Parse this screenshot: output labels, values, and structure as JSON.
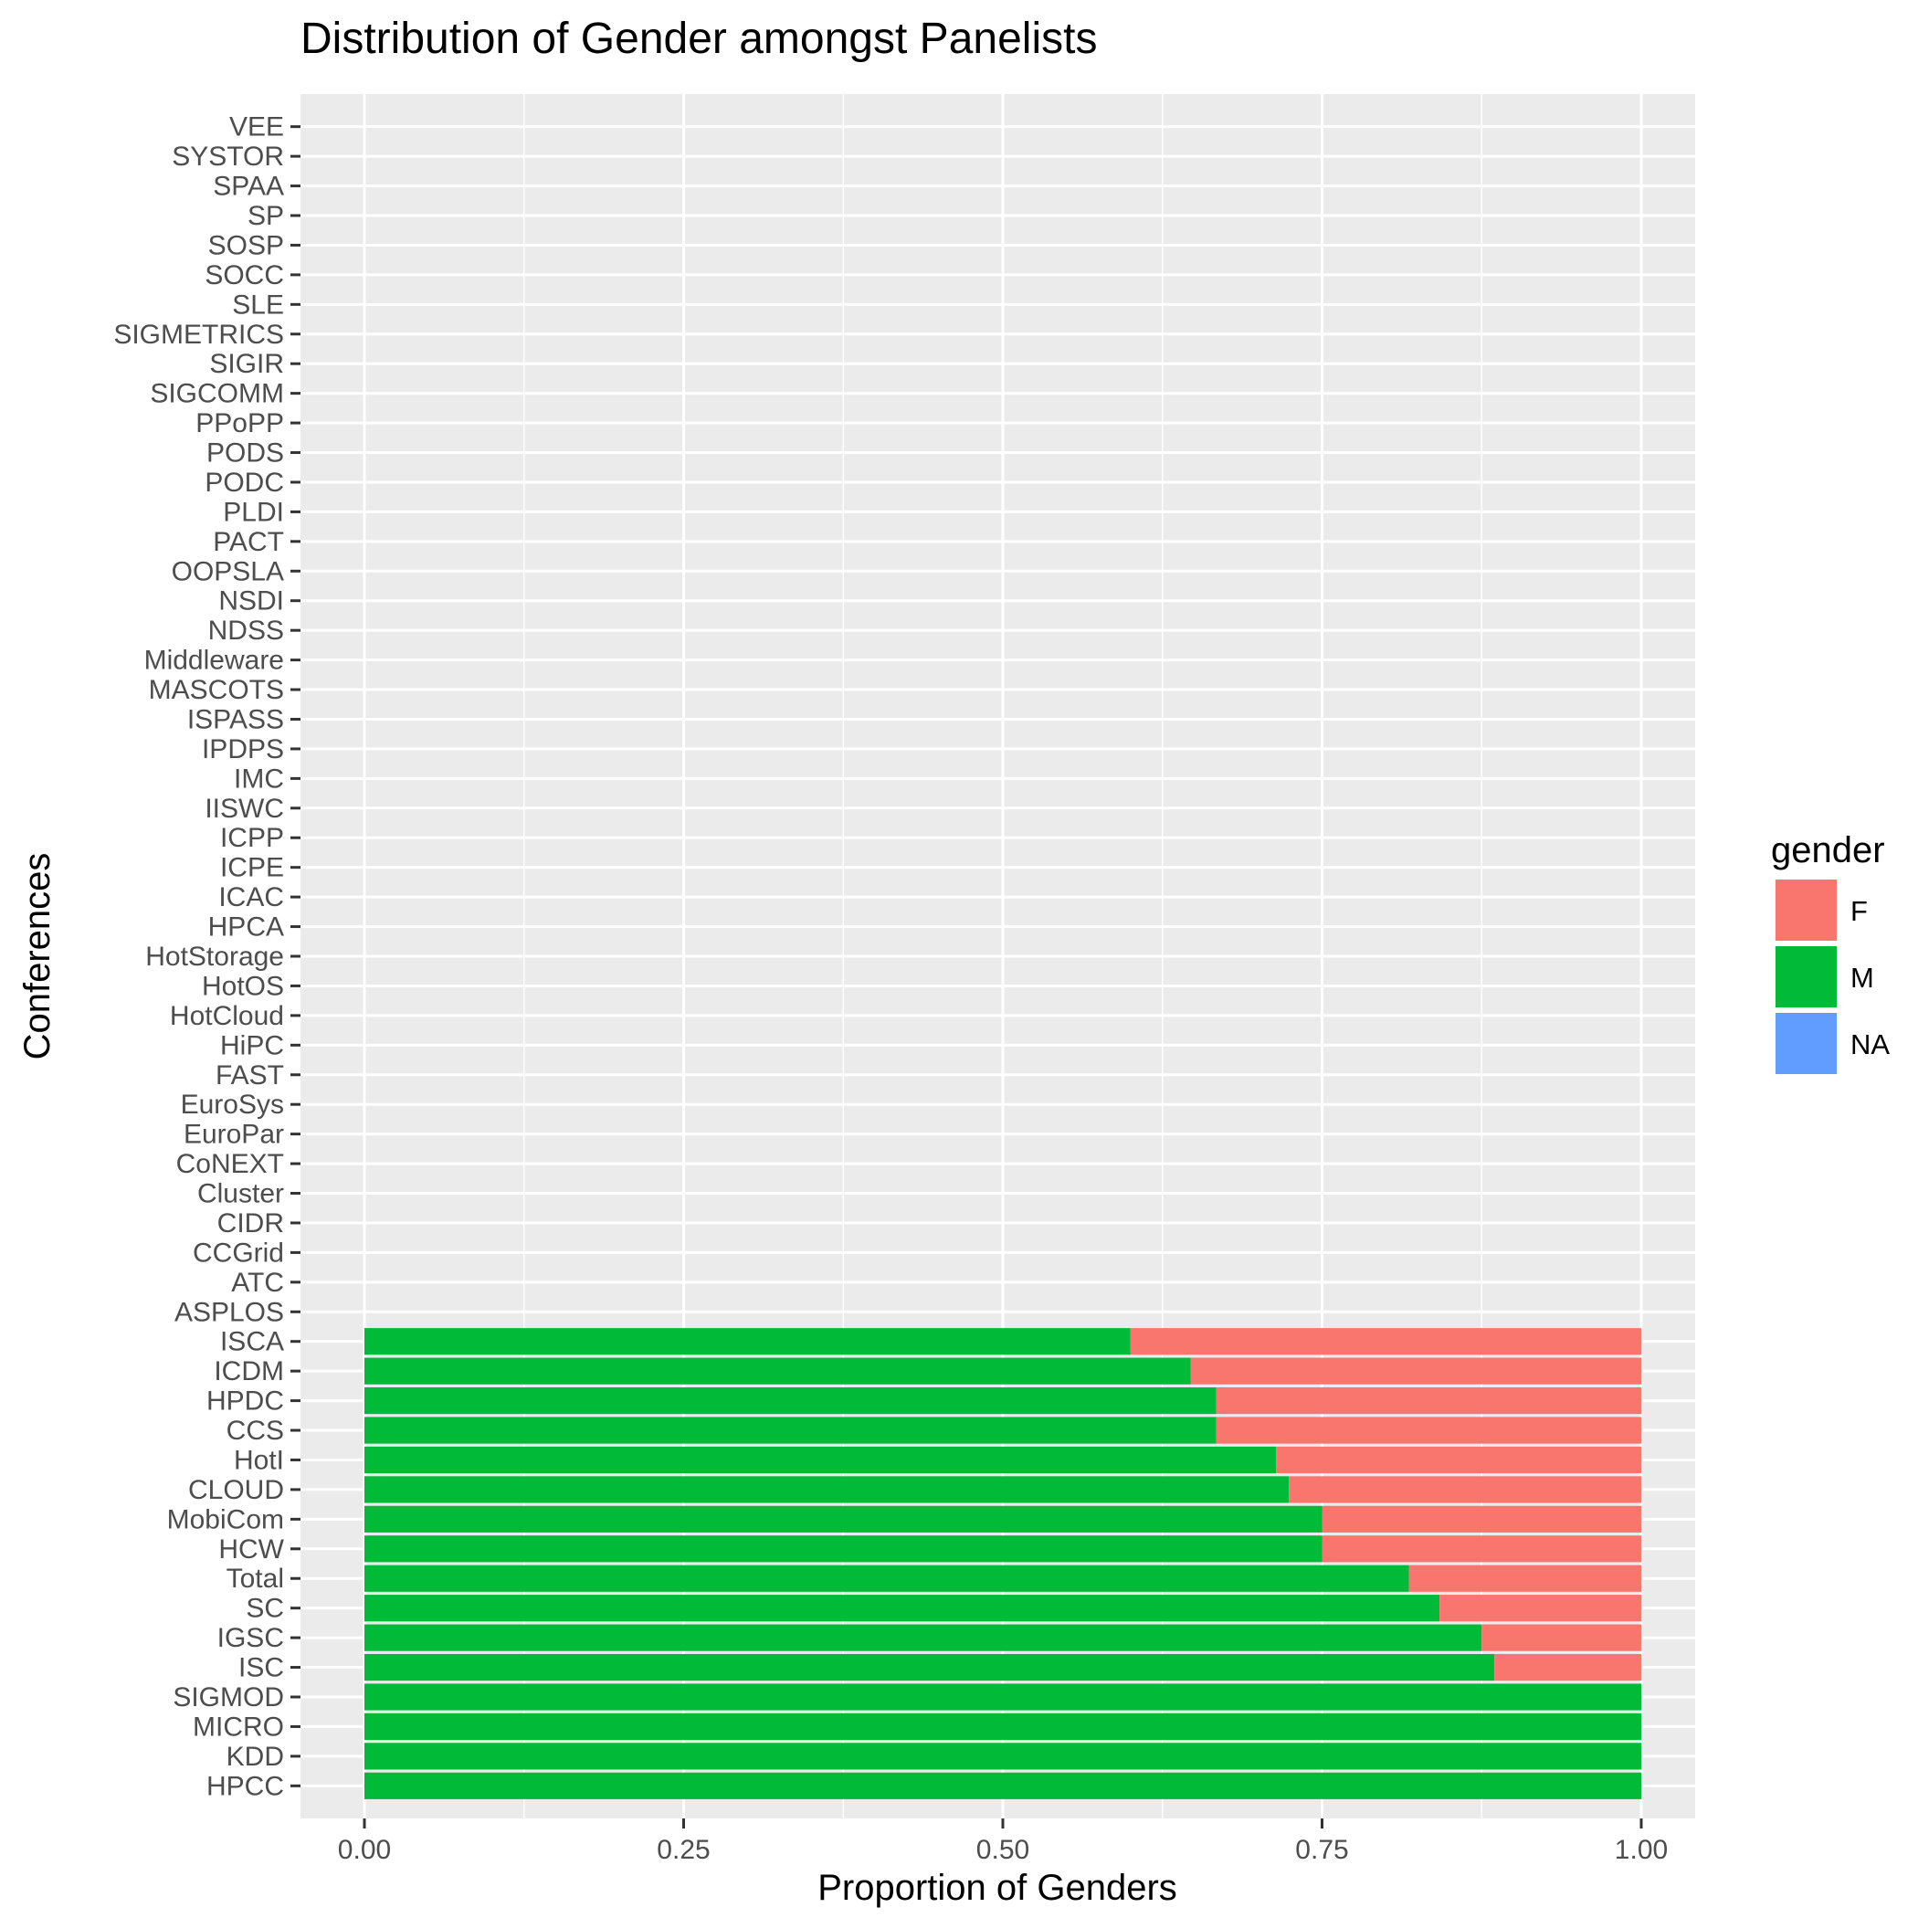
{
  "chart_data": {
    "type": "bar",
    "orientation": "horizontal",
    "stacked": true,
    "title": "Distribution of Gender amongst Panelists",
    "xlabel": "Proportion of Genders",
    "ylabel": "Conferences",
    "xlim": [
      0,
      1
    ],
    "x_ticks": [
      "0.00",
      "0.25",
      "0.50",
      "0.75",
      "1.00"
    ],
    "grid": true,
    "legend_position": "right",
    "legend_title": "gender",
    "categories": [
      "HPCC",
      "KDD",
      "MICRO",
      "SIGMOD",
      "ISC",
      "IGSC",
      "SC",
      "Total",
      "HCW",
      "MobiCom",
      "CLOUD",
      "HotI",
      "CCS",
      "HPDC",
      "ICDM",
      "ISCA",
      "ASPLOS",
      "ATC",
      "CCGrid",
      "CIDR",
      "Cluster",
      "CoNEXT",
      "EuroPar",
      "EuroSys",
      "FAST",
      "HiPC",
      "HotCloud",
      "HotOS",
      "HotStorage",
      "HPCA",
      "ICAC",
      "ICPE",
      "ICPP",
      "IISWC",
      "IMC",
      "IPDPS",
      "ISPASS",
      "MASCOTS",
      "Middleware",
      "NDSS",
      "NSDI",
      "OOPSLA",
      "PACT",
      "PLDI",
      "PODC",
      "PODS",
      "PPoPP",
      "SIGCOMM",
      "SIGIR",
      "SIGMETRICS",
      "SLE",
      "SOCC",
      "SOSP",
      "SP",
      "SPAA",
      "SYSTOR",
      "VEE"
    ],
    "series": [
      {
        "name": "M",
        "color": "#00BA38",
        "values": [
          1.0,
          1.0,
          1.0,
          1.0,
          0.885,
          0.875,
          0.842,
          0.818,
          0.75,
          0.75,
          0.724,
          0.714,
          0.667,
          0.667,
          0.647,
          0.6,
          null,
          null,
          null,
          null,
          null,
          null,
          null,
          null,
          null,
          null,
          null,
          null,
          null,
          null,
          null,
          null,
          null,
          null,
          null,
          null,
          null,
          null,
          null,
          null,
          null,
          null,
          null,
          null,
          null,
          null,
          null,
          null,
          null,
          null,
          null,
          null,
          null,
          null,
          null,
          null,
          null
        ]
      },
      {
        "name": "F",
        "color": "#F8766D",
        "values": [
          0.0,
          0.0,
          0.0,
          0.0,
          0.115,
          0.125,
          0.158,
          0.182,
          0.25,
          0.25,
          0.276,
          0.286,
          0.333,
          0.333,
          0.353,
          0.4,
          null,
          null,
          null,
          null,
          null,
          null,
          null,
          null,
          null,
          null,
          null,
          null,
          null,
          null,
          null,
          null,
          null,
          null,
          null,
          null,
          null,
          null,
          null,
          null,
          null,
          null,
          null,
          null,
          null,
          null,
          null,
          null,
          null,
          null,
          null,
          null,
          null,
          null,
          null,
          null,
          null
        ]
      },
      {
        "name": "NA",
        "color": "#619CFF",
        "values": [
          0,
          0,
          0,
          0,
          0,
          0,
          0,
          0,
          0,
          0,
          0,
          0,
          0,
          0,
          0,
          0,
          null,
          null,
          null,
          null,
          null,
          null,
          null,
          null,
          null,
          null,
          null,
          null,
          null,
          null,
          null,
          null,
          null,
          null,
          null,
          null,
          null,
          null,
          null,
          null,
          null,
          null,
          null,
          null,
          null,
          null,
          null,
          null,
          null,
          null,
          null,
          null,
          null,
          null,
          null,
          null,
          null
        ]
      }
    ],
    "legend_order": [
      "F",
      "M",
      "NA"
    ],
    "panel_color": "#EBEBEB",
    "grid_color": "#FFFFFF"
  }
}
